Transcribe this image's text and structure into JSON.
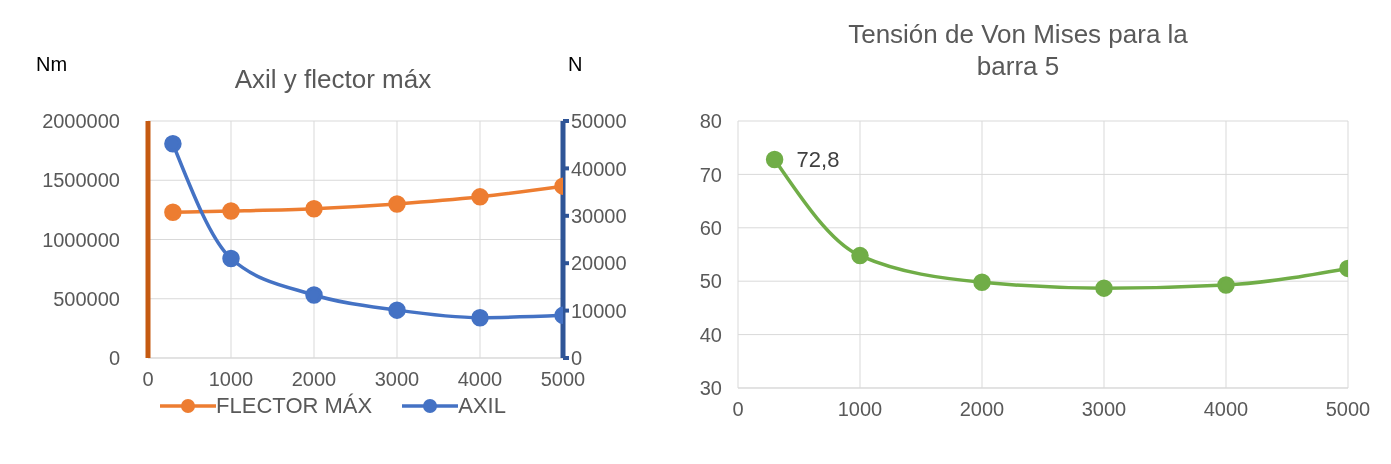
{
  "chart_data": [
    {
      "type": "line",
      "title": "Axil y flector máx",
      "ylabel": "Nm",
      "y2label": "N",
      "x": [
        300,
        1000,
        2000,
        3000,
        4000,
        5000
      ],
      "series": [
        {
          "name": "FLECTOR MÁX",
          "color": "#ed7d31",
          "values": [
            1230000,
            1240000,
            1260000,
            1300000,
            1360000,
            1450000
          ]
        },
        {
          "name": "AXIL",
          "color": "#4472c4",
          "axis": "y2",
          "values": [
            45200,
            21000,
            13300,
            10100,
            8500,
            9000
          ]
        }
      ],
      "xlim": [
        0,
        5000
      ],
      "xticks": [
        0,
        1000,
        2000,
        3000,
        4000,
        5000
      ],
      "ylim": [
        0,
        2000000
      ],
      "yticks": [
        0,
        500000,
        1000000,
        1500000,
        2000000
      ],
      "y2lim": [
        0,
        50000
      ],
      "y2ticks": [
        0,
        10000,
        20000,
        30000,
        40000,
        50000
      ],
      "grid": true,
      "legend": "bottom",
      "marker": "circle",
      "line_style": "solid"
    },
    {
      "type": "line",
      "title": "Tensión de Von Mises para la barra 5",
      "x": [
        300,
        1000,
        2000,
        3000,
        4000,
        5000
      ],
      "series": [
        {
          "color": "#70ad47",
          "values": [
            72.8,
            54.8,
            49.8,
            48.7,
            49.3,
            52.4
          ],
          "value_labels": [
            "72,8",
            null,
            null,
            null,
            null,
            null
          ]
        }
      ],
      "xlim": [
        0,
        5000
      ],
      "xticks": [
        0,
        1000,
        2000,
        3000,
        4000,
        5000
      ],
      "ylim": [
        30,
        80
      ],
      "yticks": [
        30,
        40,
        50,
        60,
        70,
        80
      ],
      "grid": true,
      "marker": "circle",
      "line_style": "solid"
    }
  ]
}
